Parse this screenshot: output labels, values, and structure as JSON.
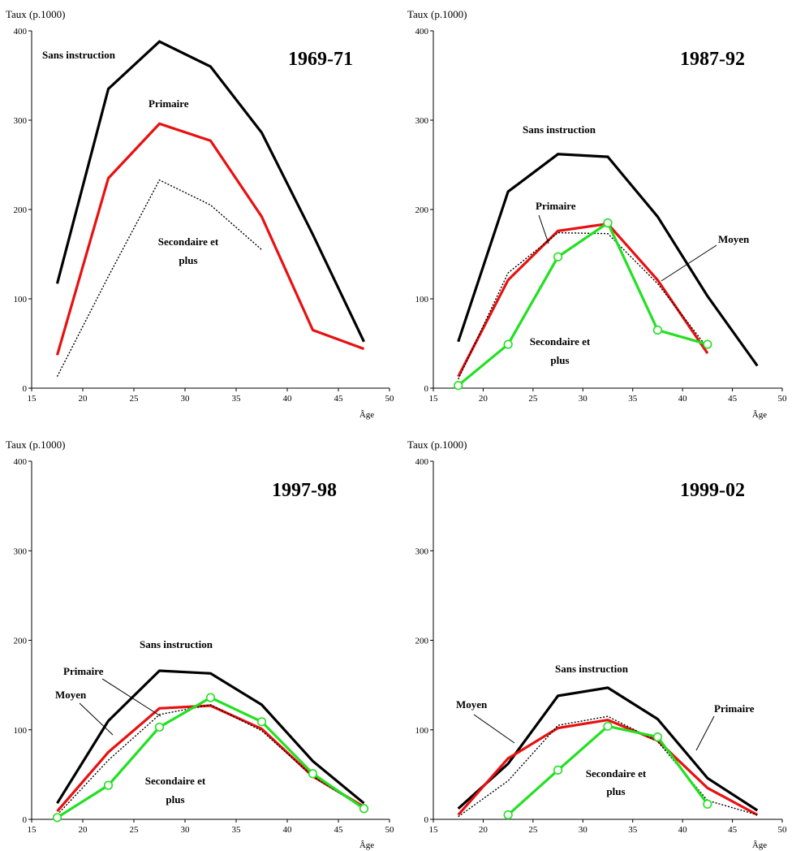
{
  "chart_data": [
    {
      "type": "line",
      "title": "1969-71",
      "ylabel": "Taux (p.1000)",
      "xlabel": "Âge",
      "xlim": [
        15,
        50
      ],
      "ylim": [
        0,
        400
      ],
      "xticks": [
        "15",
        "20",
        "25",
        "30",
        "35",
        "40",
        "45",
        "50"
      ],
      "yticks": [
        "0",
        "100",
        "200",
        "300",
        "400"
      ],
      "series": [
        {
          "x": [
            17.5,
            22.5,
            27.5,
            32.5,
            37.5,
            42.5,
            47.5
          ],
          "y": [
            117,
            335,
            388,
            360,
            286,
            172,
            52
          ],
          "color": "#000000",
          "style": "solid"
        },
        {
          "x": [
            17.5,
            22.5,
            27.5,
            32.5,
            37.5,
            42.5,
            47.5
          ],
          "y": [
            37,
            235,
            296,
            277,
            192,
            65,
            44
          ],
          "color": "#e81010",
          "style": "solid"
        },
        {
          "x": [
            17.5,
            22.5,
            27.5,
            32.5,
            37.5
          ],
          "y": [
            13,
            125,
            233,
            205,
            155
          ],
          "color": "#000000",
          "style": "dotted"
        }
      ],
      "annotations": [
        "Sans instruction",
        "Primaire",
        "Secondaire et",
        "plus"
      ]
    },
    {
      "type": "line",
      "title": "1987-92",
      "ylabel": "Taux (p.1000)",
      "xlabel": "Âge",
      "xlim": [
        15,
        50
      ],
      "ylim": [
        0,
        400
      ],
      "xticks": [
        "15",
        "20",
        "25",
        "30",
        "35",
        "40",
        "45",
        "50"
      ],
      "yticks": [
        "0",
        "100",
        "200",
        "300",
        "400"
      ],
      "series": [
        {
          "x": [
            17.5,
            22.5,
            27.5,
            32.5,
            37.5,
            42.5,
            47.5
          ],
          "y": [
            52,
            220,
            262,
            259,
            192,
            103,
            25
          ],
          "color": "#000000",
          "style": "solid"
        },
        {
          "x": [
            17.5,
            22.5,
            27.5,
            32.5,
            37.5,
            42.5
          ],
          "y": [
            13,
            121,
            176,
            184,
            121,
            39
          ],
          "color": "#e81010",
          "style": "solid"
        },
        {
          "x": [
            17.5,
            22.5,
            27.5,
            32.5,
            37.5,
            42.5
          ],
          "y": [
            10,
            129,
            174,
            173,
            117,
            45
          ],
          "color": "#000000",
          "style": "dotted"
        },
        {
          "x": [
            17.5,
            22.5,
            27.5,
            32.5,
            37.5,
            42.5
          ],
          "y": [
            3,
            49,
            147,
            185,
            65,
            49
          ],
          "color": "#22e022",
          "style": "solid",
          "marker": "circle"
        }
      ],
      "annotations": [
        "Sans instruction",
        "Primaire",
        "Moyen",
        "Secondaire et",
        "plus"
      ]
    },
    {
      "type": "line",
      "title": "1997-98",
      "ylabel": "Taux (p.1000)",
      "xlabel": "Âge",
      "xlim": [
        15,
        50
      ],
      "ylim": [
        0,
        400
      ],
      "xticks": [
        "15",
        "20",
        "25",
        "30",
        "35",
        "40",
        "45",
        "50"
      ],
      "yticks": [
        "0",
        "100",
        "200",
        "300",
        "400"
      ],
      "series": [
        {
          "x": [
            17.5,
            22.5,
            27.5,
            32.5,
            37.5,
            42.5,
            47.5
          ],
          "y": [
            18,
            110,
            166,
            163,
            128,
            65,
            18
          ],
          "color": "#000000",
          "style": "solid"
        },
        {
          "x": [
            17.5,
            22.5,
            27.5,
            32.5,
            37.5,
            42.5,
            47.5
          ],
          "y": [
            9,
            75,
            124,
            127,
            101,
            48,
            14
          ],
          "color": "#e81010",
          "style": "solid"
        },
        {
          "x": [
            17.5,
            22.5,
            27.5,
            32.5,
            37.5,
            42.5,
            47.5
          ],
          "y": [
            5,
            66,
            117,
            128,
            99,
            48,
            12
          ],
          "color": "#000000",
          "style": "dotted"
        },
        {
          "x": [
            17.5,
            22.5,
            27.5,
            32.5,
            37.5,
            42.5,
            47.5
          ],
          "y": [
            2,
            38,
            103,
            136,
            109,
            51,
            12
          ],
          "color": "#22e022",
          "style": "solid",
          "marker": "circle"
        }
      ],
      "annotations": [
        "Sans instruction",
        "Primaire",
        "Moyen",
        "Secondaire et",
        "plus"
      ]
    },
    {
      "type": "line",
      "title": "1999-02",
      "ylabel": "Taux (p.1000)",
      "xlabel": "Âge",
      "xlim": [
        15,
        50
      ],
      "ylim": [
        0,
        400
      ],
      "xticks": [
        "15",
        "20",
        "25",
        "30",
        "35",
        "40",
        "45",
        "50"
      ],
      "yticks": [
        "0",
        "100",
        "200",
        "300",
        "400"
      ],
      "series": [
        {
          "x": [
            17.5,
            22.5,
            27.5,
            32.5,
            37.5,
            42.5,
            47.5
          ],
          "y": [
            12,
            62,
            138,
            147,
            112,
            46,
            10
          ],
          "color": "#000000",
          "style": "solid"
        },
        {
          "x": [
            17.5,
            22.5,
            27.5,
            32.5,
            37.5,
            42.5,
            47.5
          ],
          "y": [
            5,
            68,
            102,
            111,
            88,
            35,
            5
          ],
          "color": "#e81010",
          "style": "solid"
        },
        {
          "x": [
            17.5,
            22.5,
            27.5,
            32.5,
            37.5,
            42.5,
            47.5
          ],
          "y": [
            3,
            43,
            105,
            115,
            87,
            21,
            5
          ],
          "color": "#000000",
          "style": "dotted"
        },
        {
          "x": [
            22.5,
            27.5,
            32.5,
            37.5,
            42.5
          ],
          "y": [
            5,
            55,
            104,
            92,
            17
          ],
          "color": "#22e022",
          "style": "solid",
          "marker": "circle"
        }
      ],
      "annotations": [
        "Sans instruction",
        "Moyen",
        "Primaire",
        "Secondaire et",
        "plus"
      ]
    }
  ]
}
